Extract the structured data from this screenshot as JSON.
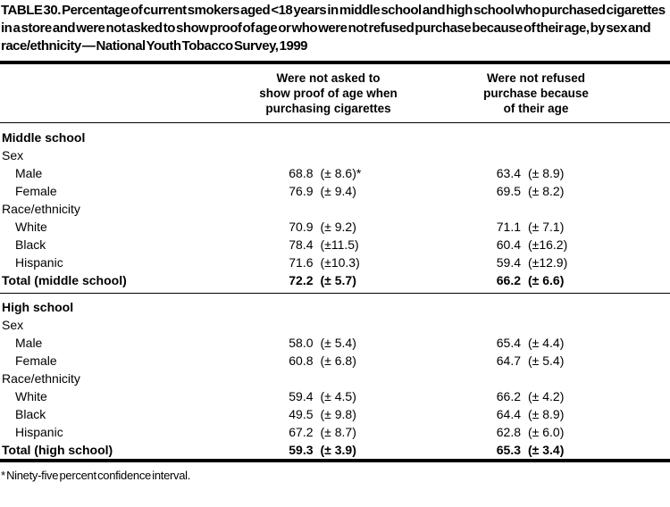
{
  "title": "TABLE 30. Percentage of current smokers aged <18 years in middle school and high school who purchased cigarettes in a store and were not asked to show proof of age or who were not refused purchase because of their age, by sex and race/ethnicity — National Youth Tobacco Survey, 1999",
  "columns": [
    "Were not asked to\nshow proof of age when\npurchasing cigarettes",
    "Were not refused\npurchase because\nof their age"
  ],
  "rows": [
    {
      "type": "section",
      "label": "Middle school"
    },
    {
      "type": "group",
      "label": "Sex"
    },
    {
      "type": "item",
      "label": "Male",
      "v1": "68.8",
      "ci1": "(± 8.6)*",
      "v2": "63.4",
      "ci2": "(± 8.9)"
    },
    {
      "type": "item",
      "label": "Female",
      "v1": "76.9",
      "ci1": "(± 9.4)",
      "v2": "69.5",
      "ci2": "(± 8.2)"
    },
    {
      "type": "group",
      "label": "Race/ethnicity"
    },
    {
      "type": "item",
      "label": "White",
      "v1": "70.9",
      "ci1": "(± 9.2)",
      "v2": "71.1",
      "ci2": "(± 7.1)"
    },
    {
      "type": "item",
      "label": "Black",
      "v1": "78.4",
      "ci1": "(±11.5)",
      "v2": "60.4",
      "ci2": "(±16.2)"
    },
    {
      "type": "item",
      "label": "Hispanic",
      "v1": "71.6",
      "ci1": "(±10.3)",
      "v2": "59.4",
      "ci2": "(±12.9)"
    },
    {
      "type": "total",
      "label": "Total (middle school)",
      "v1": "72.2",
      "ci1": "(± 5.7)",
      "v2": "66.2",
      "ci2": "(± 6.6)"
    },
    {
      "type": "divider"
    },
    {
      "type": "section",
      "label": "High school"
    },
    {
      "type": "group",
      "label": "Sex"
    },
    {
      "type": "item",
      "label": "Male",
      "v1": "58.0",
      "ci1": "(± 5.4)",
      "v2": "65.4",
      "ci2": "(± 4.4)"
    },
    {
      "type": "item",
      "label": "Female",
      "v1": "60.8",
      "ci1": "(± 6.8)",
      "v2": "64.7",
      "ci2": "(± 5.4)"
    },
    {
      "type": "group",
      "label": "Race/ethnicity"
    },
    {
      "type": "item",
      "label": "White",
      "v1": "59.4",
      "ci1": "(± 4.5)",
      "v2": "66.2",
      "ci2": "(± 4.2)"
    },
    {
      "type": "item",
      "label": "Black",
      "v1": "49.5",
      "ci1": "(± 9.8)",
      "v2": "64.4",
      "ci2": "(± 8.9)"
    },
    {
      "type": "item",
      "label": "Hispanic",
      "v1": "67.2",
      "ci1": "(± 8.7)",
      "v2": "62.8",
      "ci2": "(± 6.0)"
    },
    {
      "type": "total",
      "label": "Total (high school)",
      "v1": "59.3",
      "ci1": "(± 3.9)",
      "v2": "65.3",
      "ci2": "(± 3.4)"
    }
  ],
  "footnote": "* Ninety-five percent confidence interval."
}
